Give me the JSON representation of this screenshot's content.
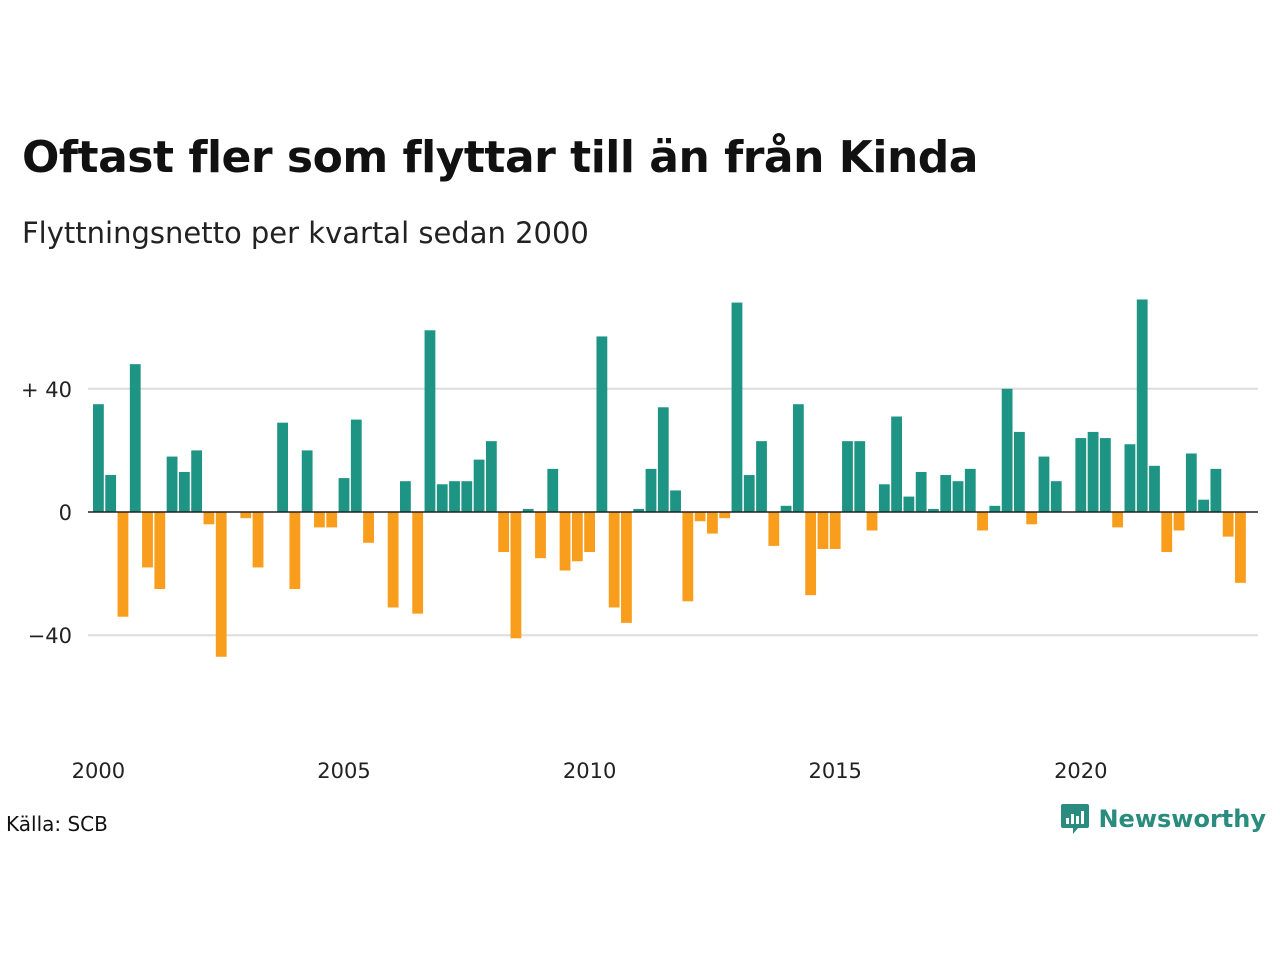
{
  "title": "Oftast fler som flyttar till än från Kinda",
  "subtitle": "Flyttningsnetto per kvartal sedan 2000",
  "source": "Källa: SCB",
  "brand": {
    "name": "Newsworthy",
    "icon": "newsworthy-logo-icon",
    "color": "#2a8c7e"
  },
  "chart_data": {
    "type": "bar",
    "title": "Oftast fler som flyttar till än från Kinda",
    "subtitle": "Flyttningsnetto per kvartal sedan 2000",
    "x_start": "2000 Q1",
    "frequency": "quarterly",
    "values": [
      35,
      12,
      -34,
      48,
      -18,
      -25,
      18,
      13,
      20,
      -4,
      -47,
      0,
      -2,
      -18,
      0,
      29,
      -25,
      20,
      -5,
      -5,
      11,
      30,
      -10,
      0,
      -31,
      10,
      -33,
      59,
      9,
      10,
      10,
      17,
      23,
      -13,
      -41,
      1,
      -15,
      14,
      -19,
      -16,
      -13,
      57,
      -31,
      -36,
      1,
      14,
      34,
      7,
      -29,
      -3,
      -7,
      -2,
      68,
      12,
      23,
      -11,
      2,
      35,
      -27,
      -12,
      -12,
      23,
      23,
      -6,
      9,
      31,
      5,
      13,
      1,
      12,
      10,
      14,
      -6,
      2,
      40,
      26,
      -4,
      18,
      10,
      0,
      24,
      26,
      24,
      -5,
      22,
      69,
      15,
      -13,
      -6,
      19,
      4,
      14,
      -8,
      -23
    ],
    "x_ticks": [
      "2000",
      "2005",
      "2010",
      "2015",
      "2020"
    ],
    "y_ticks": [
      {
        "value": 40,
        "label": "+ 40"
      },
      {
        "value": 0,
        "label": "0"
      },
      {
        "value": -40,
        "label": "−40"
      }
    ],
    "ylim": [
      -66,
      76
    ],
    "grid": true,
    "colors": {
      "positive": "#1d9484",
      "negative": "#f89d1c",
      "grid": "#dddddd",
      "zero_line": "#222222"
    }
  }
}
